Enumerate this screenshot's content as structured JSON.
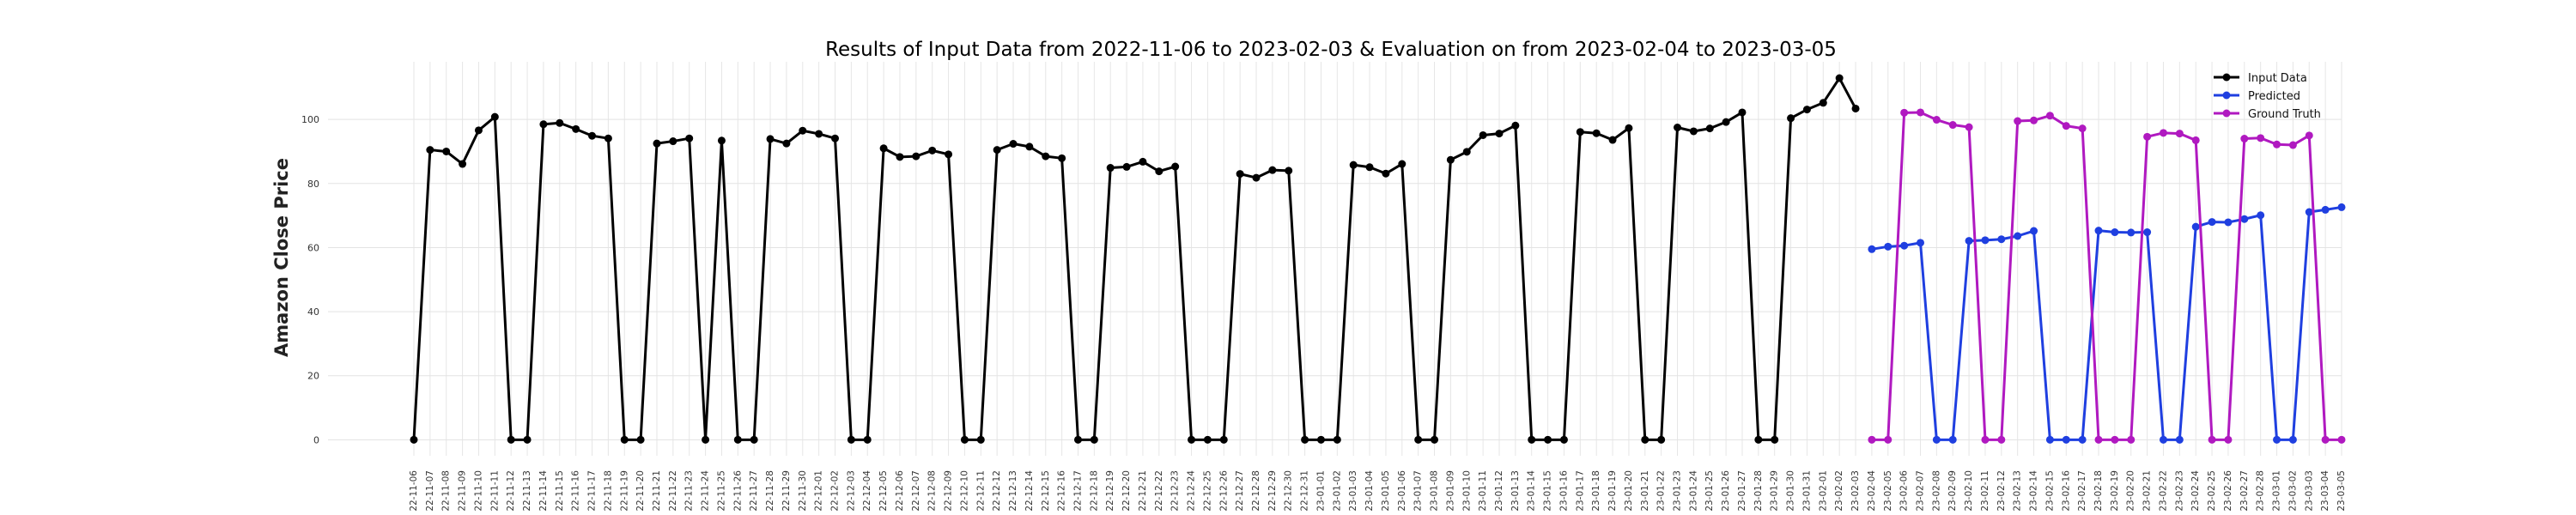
{
  "chart_data": {
    "type": "line",
    "title": "Results of Input Data from 2022-11-06 to 2023-02-03 & Evaluation on from 2023-02-04 to 2023-03-05",
    "xlabel": "",
    "ylabel": "Amazon Close Price",
    "ylim": [
      -5,
      118
    ],
    "yticks": [
      0,
      20,
      40,
      60,
      80,
      100
    ],
    "grid": true,
    "legend_position": "top-right",
    "series": [
      {
        "name": "Input Data",
        "color": "#000000",
        "x": [
          "2022-11-06",
          "2022-11-07",
          "2022-11-08",
          "2022-11-09",
          "2022-11-10",
          "2022-11-11",
          "2022-11-12",
          "2022-11-13",
          "2022-11-14",
          "2022-11-15",
          "2022-11-16",
          "2022-11-17",
          "2022-11-18",
          "2022-11-19",
          "2022-11-20",
          "2022-11-21",
          "2022-11-22",
          "2022-11-23",
          "2022-11-24",
          "2022-11-25",
          "2022-11-26",
          "2022-11-27",
          "2022-11-28",
          "2022-11-29",
          "2022-11-30",
          "2022-12-01",
          "2022-12-02",
          "2022-12-03",
          "2022-12-04",
          "2022-12-05",
          "2022-12-06",
          "2022-12-07",
          "2022-12-08",
          "2022-12-09",
          "2022-12-10",
          "2022-12-11",
          "2022-12-12",
          "2022-12-13",
          "2022-12-14",
          "2022-12-15",
          "2022-12-16",
          "2022-12-17",
          "2022-12-18",
          "2022-12-19",
          "2022-12-20",
          "2022-12-21",
          "2022-12-22",
          "2022-12-23",
          "2022-12-24",
          "2022-12-25",
          "2022-12-26",
          "2022-12-27",
          "2022-12-28",
          "2022-12-29",
          "2022-12-30",
          "2022-12-31",
          "2023-01-01",
          "2023-01-02",
          "2023-01-03",
          "2023-01-04",
          "2023-01-05",
          "2023-01-06",
          "2023-01-07",
          "2023-01-08",
          "2023-01-09",
          "2023-01-10",
          "2023-01-11",
          "2023-01-12",
          "2023-01-13",
          "2023-01-14",
          "2023-01-15",
          "2023-01-16",
          "2023-01-17",
          "2023-01-18",
          "2023-01-19",
          "2023-01-20",
          "2023-01-21",
          "2023-01-22",
          "2023-01-23",
          "2023-01-24",
          "2023-01-25",
          "2023-01-26",
          "2023-01-27",
          "2023-01-28",
          "2023-01-29",
          "2023-01-30",
          "2023-01-31",
          "2023-02-01",
          "2023-02-02",
          "2023-02-03"
        ],
        "y": [
          0,
          90.5,
          90.0,
          86.1,
          96.6,
          100.8,
          0,
          0,
          98.5,
          98.9,
          97.0,
          94.9,
          94.1,
          0,
          0,
          92.5,
          93.2,
          94.1,
          0,
          93.4,
          0,
          0,
          93.9,
          92.5,
          96.5,
          95.5,
          94.1,
          0,
          0,
          91.0,
          88.3,
          88.5,
          90.3,
          89.1,
          0,
          0,
          90.5,
          92.4,
          91.5,
          88.5,
          87.9,
          0,
          0,
          84.9,
          85.2,
          86.8,
          83.8,
          85.3,
          0,
          0,
          0,
          83.0,
          81.8,
          84.2,
          84.0,
          0,
          0,
          0,
          85.8,
          85.1,
          83.1,
          86.1,
          0,
          0,
          87.4,
          89.9,
          95.1,
          95.6,
          98.1,
          0,
          0,
          0,
          96.1,
          95.7,
          93.6,
          97.3,
          0,
          0,
          97.5,
          96.3,
          97.2,
          99.2,
          102.2,
          0,
          0,
          100.4,
          103.1,
          105.2,
          112.9,
          103.4
        ]
      },
      {
        "name": "Predicted",
        "color": "#1f3fe0",
        "x": [
          "2023-02-04",
          "2023-02-05",
          "2023-02-06",
          "2023-02-07",
          "2023-02-08",
          "2023-02-09",
          "2023-02-10",
          "2023-02-11",
          "2023-02-12",
          "2023-02-13",
          "2023-02-14",
          "2023-02-15",
          "2023-02-16",
          "2023-02-17",
          "2023-02-18",
          "2023-02-19",
          "2023-02-20",
          "2023-02-21",
          "2023-02-22",
          "2023-02-23",
          "2023-02-24",
          "2023-02-25",
          "2023-02-26",
          "2023-02-27",
          "2023-02-28",
          "2023-03-01",
          "2023-03-02",
          "2023-03-03",
          "2023-03-04",
          "2023-03-05"
        ],
        "y": [
          59.5,
          60.3,
          60.6,
          61.5,
          0,
          0,
          62.1,
          62.3,
          62.6,
          63.6,
          65.2,
          0,
          0,
          0,
          65.3,
          64.8,
          64.7,
          64.8,
          0,
          0,
          66.5,
          68.0,
          67.9,
          68.9,
          70.1,
          0,
          0,
          71.1,
          71.8,
          72.6
        ]
      },
      {
        "name": "Ground Truth",
        "color": "#b019c0",
        "x": [
          "2023-02-04",
          "2023-02-05",
          "2023-02-06",
          "2023-02-07",
          "2023-02-08",
          "2023-02-09",
          "2023-02-10",
          "2023-02-11",
          "2023-02-12",
          "2023-02-13",
          "2023-02-14",
          "2023-02-15",
          "2023-02-16",
          "2023-02-17",
          "2023-02-18",
          "2023-02-19",
          "2023-02-20",
          "2023-02-21",
          "2023-02-22",
          "2023-02-23",
          "2023-02-24",
          "2023-02-25",
          "2023-02-26",
          "2023-02-27",
          "2023-02-28",
          "2023-03-01",
          "2023-03-02",
          "2023-03-03",
          "2023-03-04",
          "2023-03-05"
        ],
        "y": [
          0,
          0,
          102.1,
          102.2,
          99.9,
          98.3,
          97.6,
          0,
          0,
          99.5,
          99.7,
          101.2,
          98.0,
          97.2,
          0,
          0,
          0,
          94.6,
          95.8,
          95.6,
          93.5,
          0,
          0,
          94.0,
          94.2,
          92.2,
          92.0,
          95.0,
          0,
          0
        ]
      }
    ],
    "categories": [
      "2022-11-06",
      "2022-11-07",
      "2022-11-08",
      "2022-11-09",
      "2022-11-10",
      "2022-11-11",
      "2022-11-12",
      "2022-11-13",
      "2022-11-14",
      "2022-11-15",
      "2022-11-16",
      "2022-11-17",
      "2022-11-18",
      "2022-11-19",
      "2022-11-20",
      "2022-11-21",
      "2022-11-22",
      "2022-11-23",
      "2022-11-24",
      "2022-11-25",
      "2022-11-26",
      "2022-11-27",
      "2022-11-28",
      "2022-11-29",
      "2022-11-30",
      "2022-12-01",
      "2022-12-02",
      "2022-12-03",
      "2022-12-04",
      "2022-12-05",
      "2022-12-06",
      "2022-12-07",
      "2022-12-08",
      "2022-12-09",
      "2022-12-10",
      "2022-12-11",
      "2022-12-12",
      "2022-12-13",
      "2022-12-14",
      "2022-12-15",
      "2022-12-16",
      "2022-12-17",
      "2022-12-18",
      "2022-12-19",
      "2022-12-20",
      "2022-12-21",
      "2022-12-22",
      "2022-12-23",
      "2022-12-24",
      "2022-12-25",
      "2022-12-26",
      "2022-12-27",
      "2022-12-28",
      "2022-12-29",
      "2022-12-30",
      "2022-12-31",
      "2023-01-01",
      "2023-01-02",
      "2023-01-03",
      "2023-01-04",
      "2023-01-05",
      "2023-01-06",
      "2023-01-07",
      "2023-01-08",
      "2023-01-09",
      "2023-01-10",
      "2023-01-11",
      "2023-01-12",
      "2023-01-13",
      "2023-01-14",
      "2023-01-15",
      "2023-01-16",
      "2023-01-17",
      "2023-01-18",
      "2023-01-19",
      "2023-01-20",
      "2023-01-21",
      "2023-01-22",
      "2023-01-23",
      "2023-01-24",
      "2023-01-25",
      "2023-01-26",
      "2023-01-27",
      "2023-01-28",
      "2023-01-29",
      "2023-01-30",
      "2023-01-31",
      "2023-02-01",
      "2023-02-02",
      "2023-02-03",
      "2023-02-04",
      "2023-02-05",
      "2023-02-06",
      "2023-02-07",
      "2023-02-08",
      "2023-02-09",
      "2023-02-10",
      "2023-02-11",
      "2023-02-12",
      "2023-02-13",
      "2023-02-14",
      "2023-02-15",
      "2023-02-16",
      "2023-02-17",
      "2023-02-18",
      "2023-02-19",
      "2023-02-20",
      "2023-02-21",
      "2023-02-22",
      "2023-02-23",
      "2023-02-24",
      "2023-02-25",
      "2023-02-26",
      "2023-02-27",
      "2023-02-28",
      "2023-03-01",
      "2023-03-02",
      "2023-03-03",
      "2023-03-04",
      "2023-03-05"
    ],
    "x_tick_labels": [
      "22-11-06",
      "22-11-07",
      "22-11-08",
      "22-11-09",
      "22-11-10",
      "22-11-11",
      "22-11-12",
      "22-11-13",
      "22-11-14",
      "22-11-15",
      "22-11-16",
      "22-11-17",
      "22-11-18",
      "22-11-19",
      "22-11-20",
      "22-11-21",
      "22-11-22",
      "22-11-23",
      "22-11-24",
      "22-11-25",
      "22-11-26",
      "22-11-27",
      "22-11-28",
      "22-11-29",
      "22-11-30",
      "22-12-01",
      "22-12-02",
      "22-12-03",
      "22-12-04",
      "22-12-05",
      "22-12-06",
      "22-12-07",
      "22-12-08",
      "22-12-09",
      "22-12-10",
      "22-12-11",
      "22-12-12",
      "22-12-13",
      "22-12-14",
      "22-12-15",
      "22-12-16",
      "22-12-17",
      "22-12-18",
      "22-12-19",
      "22-12-20",
      "22-12-21",
      "22-12-22",
      "22-12-23",
      "22-12-24",
      "22-12-25",
      "22-12-26",
      "22-12-27",
      "22-12-28",
      "22-12-29",
      "22-12-30",
      "22-12-31",
      "23-01-01",
      "23-01-02",
      "23-01-03",
      "23-01-04",
      "23-01-05",
      "23-01-06",
      "23-01-07",
      "23-01-08",
      "23-01-09",
      "23-01-10",
      "23-01-11",
      "23-01-12",
      "23-01-13",
      "23-01-14",
      "23-01-15",
      "23-01-16",
      "23-01-17",
      "23-01-18",
      "23-01-19",
      "23-01-20",
      "23-01-21",
      "23-01-22",
      "23-01-23",
      "23-01-24",
      "23-01-25",
      "23-01-26",
      "23-01-27",
      "23-01-28",
      "23-01-29",
      "23-01-30",
      "23-01-31",
      "23-02-01",
      "23-02-02",
      "23-02-03",
      "23-02-04",
      "23-02-05",
      "23-02-06",
      "23-02-07",
      "23-02-08",
      "23-02-09",
      "23-02-10",
      "23-02-11",
      "23-02-12",
      "23-02-13",
      "23-02-14",
      "23-02-15",
      "23-02-16",
      "23-02-17",
      "23-02-18",
      "23-02-19",
      "23-02-20",
      "23-02-21",
      "23-02-22",
      "23-02-23",
      "23-02-24",
      "23-02-25",
      "23-02-26",
      "23-02-27",
      "23-02-28",
      "23-03-01",
      "23-03-02",
      "23-03-03",
      "23-03-04",
      "23-03-05"
    ]
  }
}
